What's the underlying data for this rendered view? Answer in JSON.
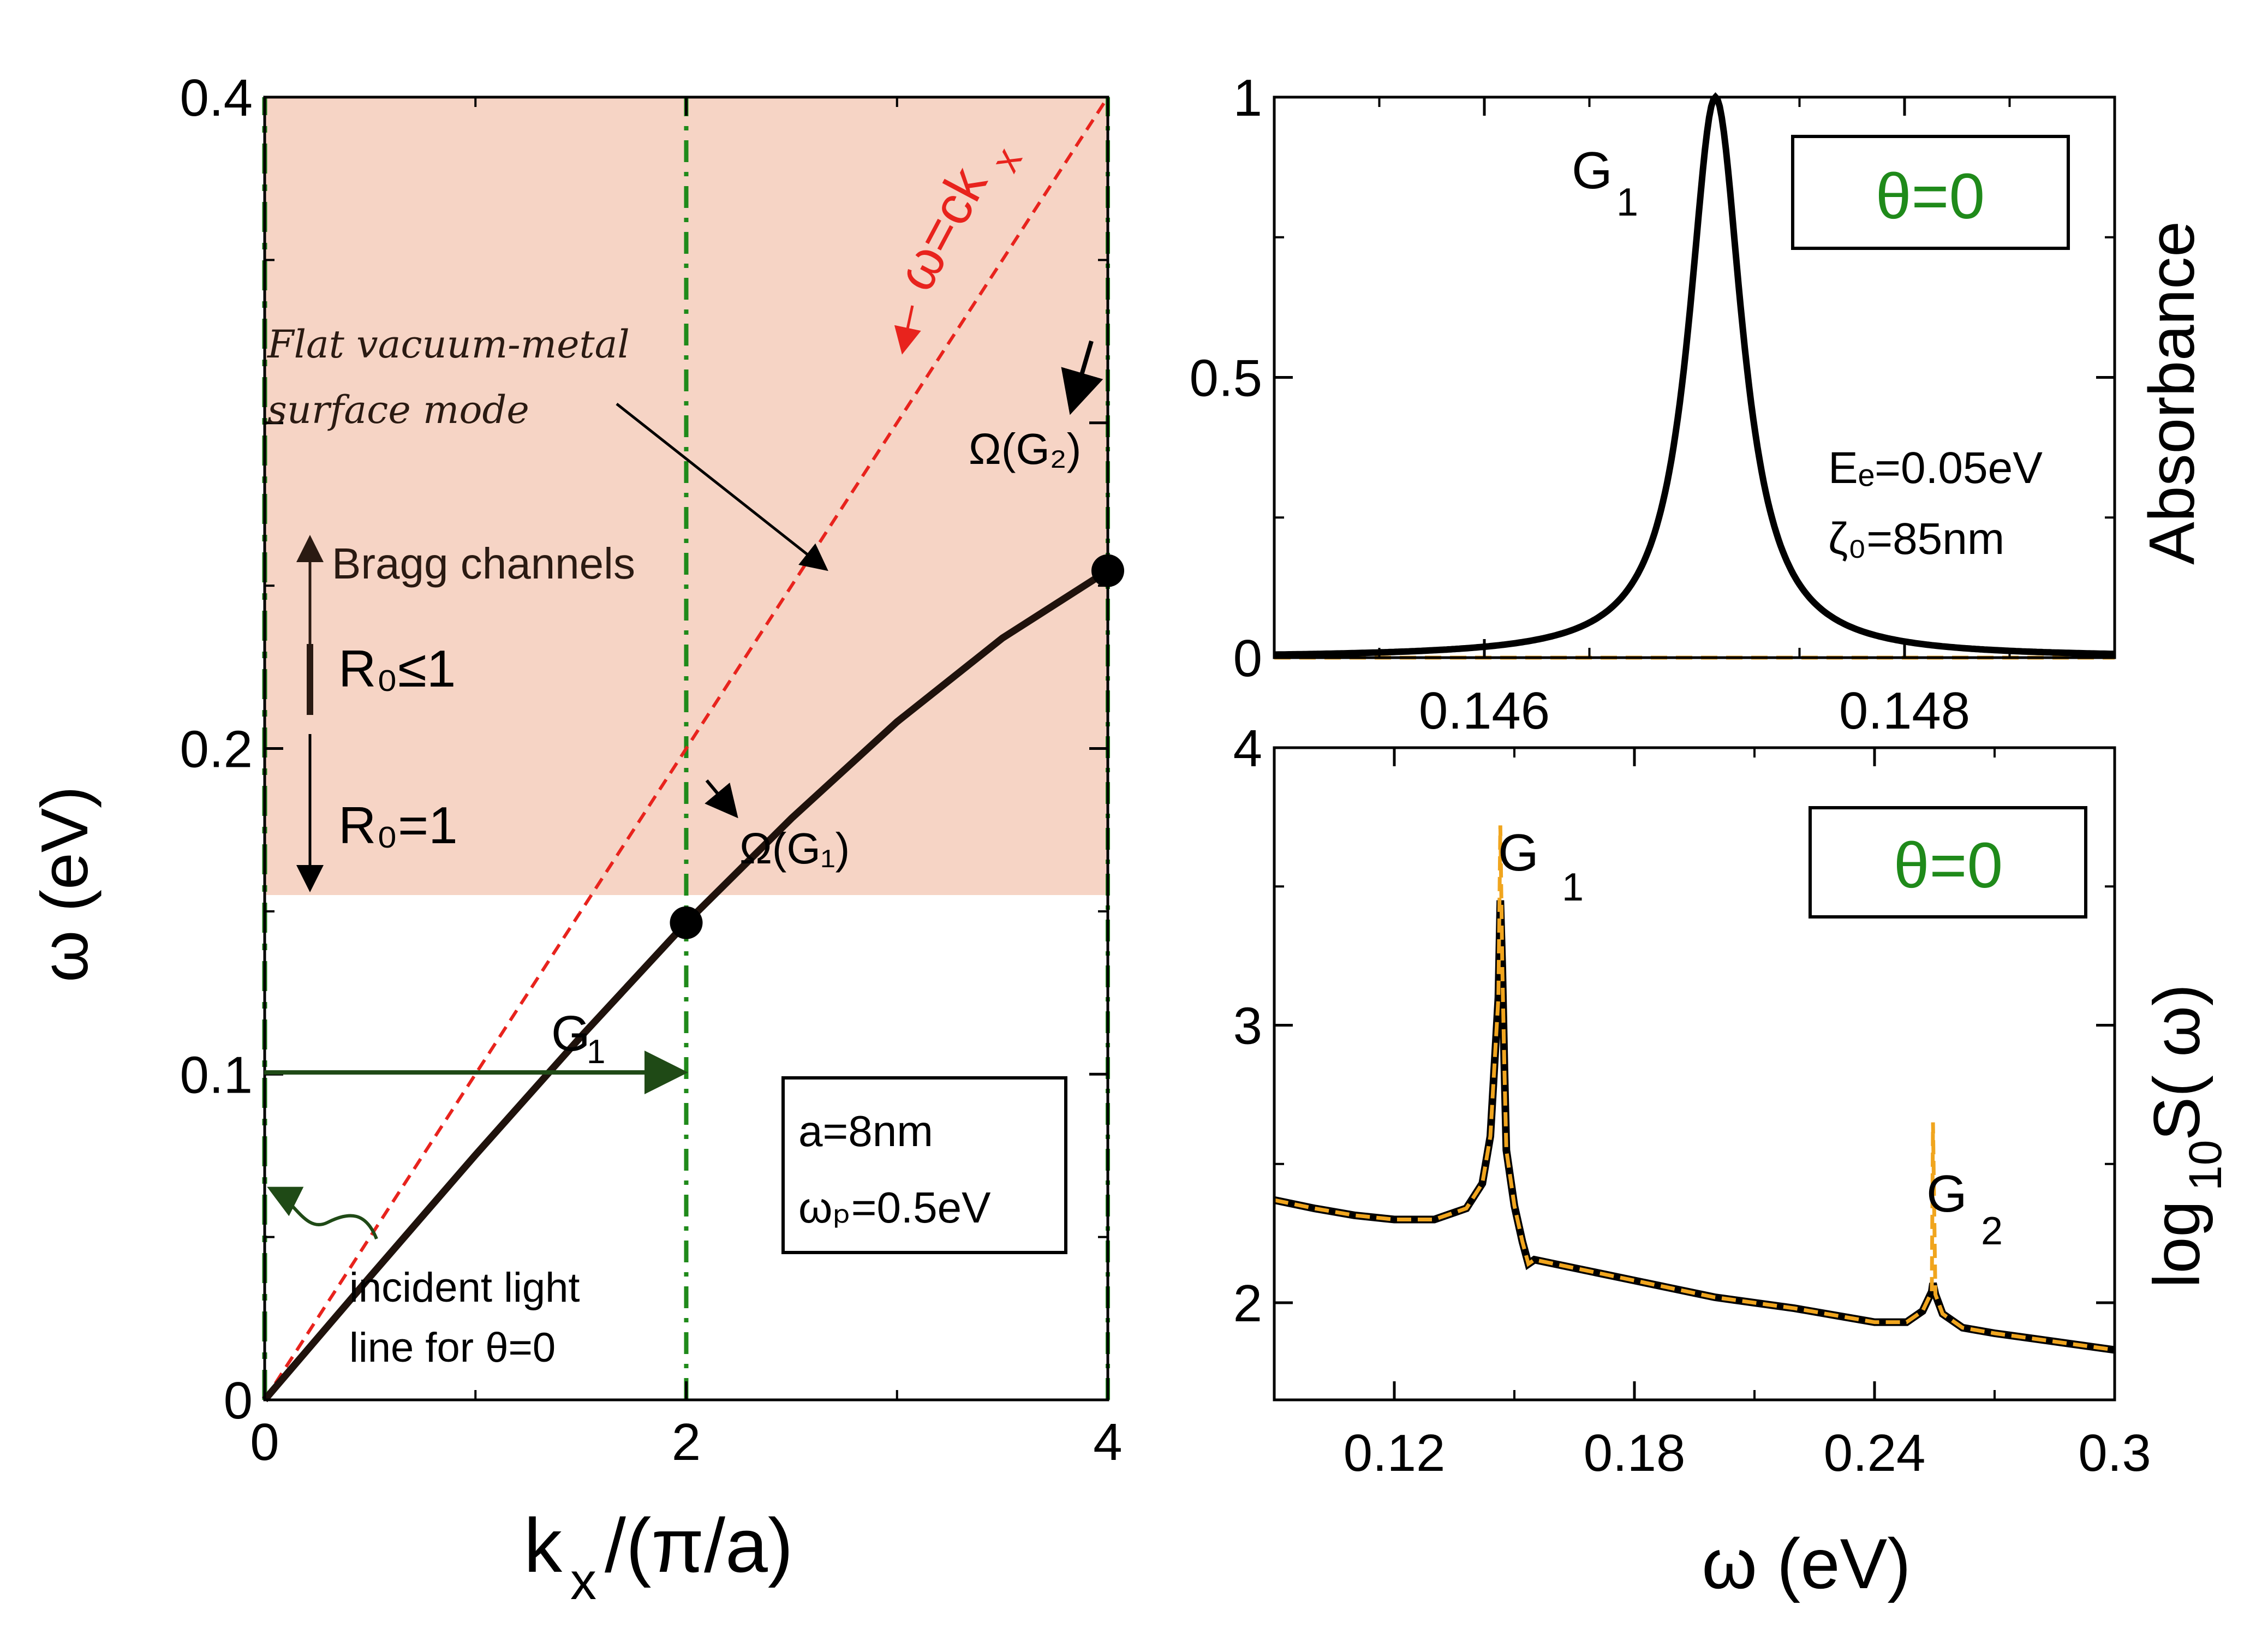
{
  "chart_data": [
    {
      "id": "dispersion",
      "type": "line",
      "xlabel": "k",
      "xlabel_sub": "x",
      "xlabel_tail": "/(π/a)",
      "ylabel": "ω (eV)",
      "xlim": [
        0,
        4
      ],
      "ylim": [
        0,
        0.4
      ],
      "xticks": [
        "0",
        "2",
        "4"
      ],
      "yticks": [
        "0",
        "0.1",
        "0.2",
        "0.4"
      ],
      "shaded_region": {
        "y_from": 0.155,
        "y_to": 0.4,
        "color": "#f6d4c5"
      },
      "series": [
        {
          "name": "surface mode dispersion",
          "color": "#1f120c",
          "x": [
            0,
            0.5,
            1.0,
            1.5,
            2.0,
            2.5,
            3.0,
            3.5,
            4.0
          ],
          "y": [
            0,
            0.0378,
            0.0752,
            0.1115,
            0.1465,
            0.1786,
            0.2082,
            0.2339,
            0.2546
          ]
        },
        {
          "name": "ω=ck_x light line",
          "color": "#e8231d",
          "style": "dashed",
          "x": [
            0,
            4.0
          ],
          "y": [
            0,
            0.4
          ]
        },
        {
          "name": "incident light line for θ=0",
          "color": "#1f7a1a",
          "style": "dashed",
          "x": [
            0,
            0
          ],
          "y": [
            0,
            0.4
          ]
        },
        {
          "name": "zone boundary k=2",
          "color": "#1f8a1a",
          "style": "dashdot",
          "x": [
            2,
            2
          ],
          "y": [
            0,
            0.4
          ]
        },
        {
          "name": "zone boundary k=4",
          "color": "#1f8a1a",
          "style": "dashdot",
          "x": [
            4,
            4
          ],
          "y": [
            0,
            0.4
          ]
        }
      ],
      "points": [
        {
          "label": "Ω(G₁)",
          "x": 2.0,
          "y": 0.1465
        },
        {
          "label": "Ω(G₂)",
          "x": 4.0,
          "y": 0.2546
        }
      ],
      "annotations": {
        "light_line": "ω=ck",
        "light_line_sub": "x",
        "flat_mode_1": "Flat vacuum-metal",
        "flat_mode_2": "surface mode",
        "bragg_channels": "Bragg channels",
        "r0_le": "R₀≤1",
        "r0_eq": "R₀=1",
        "g1_arrow": "G",
        "g1_arrow_sub": "1",
        "omega_g1": "Ω(G₁)",
        "omega_g2": "Ω(G₂)",
        "incident_1": "incident light",
        "incident_2": "line for θ=0",
        "param_a": "a=8nm",
        "param_wp": "ωₚ=0.5eV"
      }
    },
    {
      "id": "absorbance",
      "type": "line",
      "ylabel": "Absorbance",
      "xlim": [
        0.145,
        0.149
      ],
      "ylim": [
        0,
        1
      ],
      "xticks": [
        "0.146",
        "0.148"
      ],
      "yticks": [
        "0",
        "0.5",
        "1"
      ],
      "series": [
        {
          "name": "absorbance",
          "color": "#000000",
          "style": "solid",
          "lorentz_center": 0.1471,
          "lorentz_halfwidth": 0.000155,
          "peak": 1.0
        },
        {
          "name": "baseline",
          "color": "#f0a51e",
          "style": "dashed",
          "x": [
            0.145,
            0.149
          ],
          "y": [
            0,
            0
          ]
        }
      ],
      "annotations": {
        "peak": "G",
        "peak_sub": "1",
        "theta_box": "θ=0",
        "fermi": "Eₑ=0.05eV",
        "zeta": "ζ₀=85nm"
      }
    },
    {
      "id": "spectrum",
      "type": "line",
      "xlabel": "ω (eV)",
      "ylabel": "log",
      "ylabel_sub": "10",
      "ylabel_tail": " S( ω)",
      "xlim": [
        0.09,
        0.3
      ],
      "ylim": [
        1.65,
        4.0
      ],
      "xticks": [
        "0.12",
        "0.18",
        "0.24",
        "0.3"
      ],
      "yticks": [
        "2",
        "3",
        "4"
      ],
      "series": [
        {
          "name": "log10 S(ω) numeric",
          "color": "#000000",
          "style": "solid",
          "x": [
            0.09,
            0.1,
            0.11,
            0.12,
            0.13,
            0.138,
            0.142,
            0.144,
            0.146,
            0.1465,
            0.147,
            0.1475,
            0.148,
            0.15,
            0.152,
            0.1535,
            0.155,
            0.16,
            0.18,
            0.2,
            0.22,
            0.24,
            0.248,
            0.252,
            0.2543,
            0.2546,
            0.2552,
            0.257,
            0.262,
            0.27,
            0.28,
            0.29,
            0.3
          ],
          "y": [
            2.37,
            2.34,
            2.315,
            2.3,
            2.3,
            2.34,
            2.43,
            2.6,
            3.1,
            3.45,
            3.2,
            2.85,
            2.55,
            2.35,
            2.22,
            2.14,
            2.155,
            2.14,
            2.08,
            2.02,
            1.98,
            1.93,
            1.93,
            1.97,
            2.04,
            2.07,
            2.03,
            1.96,
            1.91,
            1.89,
            1.87,
            1.85,
            1.83
          ]
        },
        {
          "name": "log10 S(ω) analytic",
          "color": "#f0a51e",
          "style": "dashed",
          "x": [
            0.09,
            0.1,
            0.11,
            0.12,
            0.13,
            0.138,
            0.142,
            0.144,
            0.146,
            0.1465,
            0.147,
            0.1475,
            0.148,
            0.15,
            0.152,
            0.1535,
            0.155,
            0.16,
            0.18,
            0.2,
            0.22,
            0.24,
            0.248,
            0.252,
            0.2543,
            0.2546,
            0.2552,
            0.257,
            0.262,
            0.27,
            0.28,
            0.29,
            0.3
          ],
          "y": [
            2.37,
            2.34,
            2.315,
            2.3,
            2.3,
            2.34,
            2.43,
            2.6,
            3.1,
            3.72,
            3.2,
            2.85,
            2.55,
            2.35,
            2.22,
            2.14,
            2.155,
            2.14,
            2.08,
            2.02,
            1.98,
            1.93,
            1.93,
            1.97,
            2.04,
            2.65,
            2.03,
            1.96,
            1.91,
            1.89,
            1.87,
            1.85,
            1.83
          ]
        }
      ],
      "annotations": {
        "g1": "G",
        "g1_sub": "1",
        "g2": "G",
        "g2_sub": "2",
        "theta_box": "θ=0"
      }
    }
  ]
}
